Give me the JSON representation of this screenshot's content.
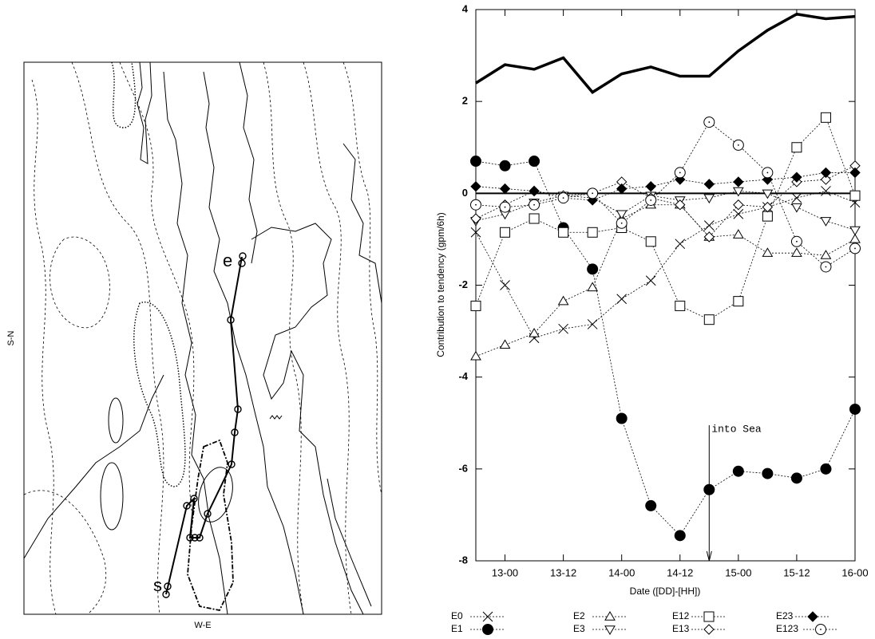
{
  "chart_data": [
    {
      "type": "map",
      "xlabel": "W-E",
      "ylabel": "S-N",
      "track_labels": [
        "s",
        "e"
      ]
    },
    {
      "type": "line",
      "xlabel": "Date ([DD]-[HH])",
      "ylabel": "Contribution to tendency (gpm/6h)",
      "categories": [
        null,
        "13-00",
        null,
        "13-12",
        null,
        "14-00",
        null,
        "14-12",
        null,
        "15-00",
        null,
        "15-12",
        null,
        "16-00"
      ],
      "ylim": [
        -8,
        4
      ],
      "yticks": [
        -8,
        -6,
        -4,
        -2,
        0,
        2,
        4
      ],
      "annotation": "into Sea",
      "series": [
        {
          "color": "#000000",
          "line": "solid-thick",
          "marker": "none",
          "values": [
            2.4,
            2.8,
            2.7,
            2.95,
            2.2,
            2.6,
            2.75,
            2.55,
            2.55,
            3.1,
            3.55,
            3.9,
            3.8,
            3.85
          ]
        },
        {
          "name": "E0",
          "color": "#000000",
          "line": "dashed",
          "marker": "x",
          "values": [
            -0.85,
            -2.0,
            -3.15,
            -2.95,
            -2.85,
            -2.3,
            -1.9,
            -1.1,
            -0.7,
            -0.45,
            -0.3,
            -0.1,
            0.05,
            -0.2
          ]
        },
        {
          "name": "E1",
          "color": "#000000",
          "line": "dashed",
          "marker": "filled-circle",
          "values": [
            0.7,
            0.6,
            0.7,
            -0.75,
            -1.65,
            -4.9,
            -6.8,
            -7.45,
            -6.45,
            -6.05,
            -6.1,
            -6.2,
            -6.0,
            -4.7
          ]
        },
        {
          "name": "E2",
          "color": "#000000",
          "line": "dashed",
          "marker": "triangle-up",
          "values": [
            -3.55,
            -3.3,
            -3.05,
            -2.35,
            -2.05,
            -0.55,
            -0.25,
            -0.25,
            -0.95,
            -0.9,
            -1.3,
            -1.3,
            -1.35,
            -1.0
          ]
        },
        {
          "name": "E3",
          "color": "#000000",
          "line": "dashed",
          "marker": "triangle-down",
          "values": [
            -0.6,
            -0.45,
            -0.2,
            -0.05,
            -0.1,
            -0.45,
            -0.05,
            -0.15,
            -0.1,
            0.05,
            0.0,
            -0.3,
            -0.6,
            -0.8
          ]
        },
        {
          "name": "E12",
          "color": "#000000",
          "line": "dashed",
          "marker": "square",
          "values": [
            -2.45,
            -0.85,
            -0.55,
            -0.85,
            -0.85,
            -0.75,
            -1.05,
            -2.45,
            -2.75,
            -2.35,
            -0.5,
            1.0,
            1.65,
            -0.05
          ]
        },
        {
          "name": "E13",
          "color": "#000000",
          "line": "dashed",
          "marker": "diamond",
          "values": [
            -0.55,
            -0.25,
            0.05,
            -0.05,
            0.0,
            0.25,
            -0.1,
            -0.25,
            -0.95,
            -0.25,
            -0.3,
            0.25,
            0.3,
            0.6
          ]
        },
        {
          "name": "E23",
          "color": "#000000",
          "line": "dashed",
          "marker": "filled-diamond",
          "values": [
            0.15,
            0.1,
            0.05,
            -0.1,
            -0.15,
            0.1,
            0.15,
            0.3,
            0.2,
            0.25,
            0.3,
            0.35,
            0.45,
            0.45
          ]
        },
        {
          "name": "E123",
          "color": "#000000",
          "line": "dashed",
          "marker": "circle-dot",
          "values": [
            -0.25,
            -0.3,
            -0.25,
            -0.1,
            0.0,
            -0.65,
            -0.15,
            0.45,
            1.55,
            1.05,
            0.45,
            -1.05,
            -1.6,
            -1.2
          ]
        }
      ]
    }
  ]
}
